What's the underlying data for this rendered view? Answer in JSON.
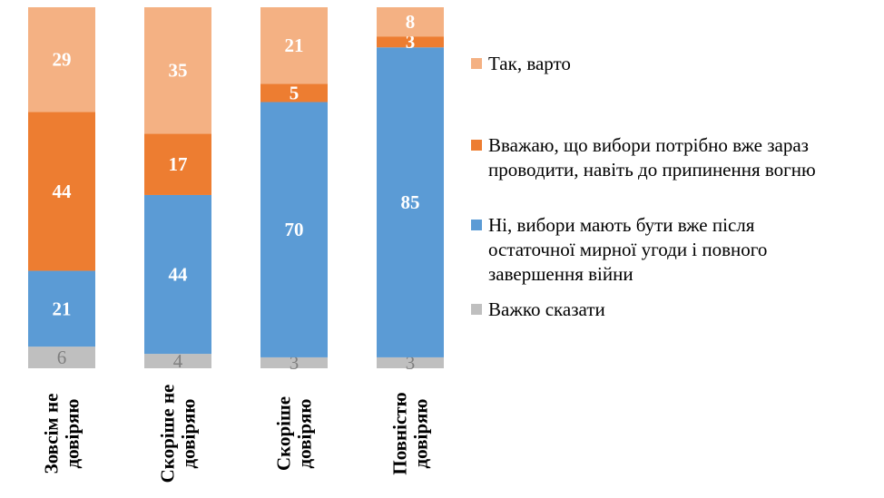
{
  "chart_data": {
    "type": "bar",
    "stacked": true,
    "orientation": "vertical",
    "categories": [
      [
        "Зовсім не",
        "довіряю"
      ],
      [
        "Скоріше не",
        "довіряю"
      ],
      [
        "Скоріше",
        "довіряю"
      ],
      [
        "Повністю",
        "довіряю"
      ]
    ],
    "series": [
      {
        "name": "Важко сказати",
        "color": "#bfbfbf",
        "values": [
          6,
          4,
          3,
          3
        ]
      },
      {
        "name": "Ні, вибори мають бути вже після остаточної мирної угоди і повного завершення війни",
        "color": "#5b9bd5",
        "values": [
          21,
          44,
          70,
          85
        ]
      },
      {
        "name": "Вважаю, що вибори потрібно вже зараз проводити, навіть до припинення вогню",
        "color": "#ed7d31",
        "values": [
          44,
          17,
          5,
          3
        ]
      },
      {
        "name": "Так, варто",
        "color": "#f4b183",
        "values": [
          29,
          35,
          21,
          8
        ]
      }
    ],
    "ylim": [
      0,
      100
    ],
    "axis_visible": false,
    "grid": false,
    "legend_position": "right"
  },
  "legend": [
    {
      "color": "#f4b183",
      "lines": [
        "Так, варто"
      ]
    },
    {
      "color": "#ed7d31",
      "lines": [
        "Вважаю, що вибори потрібно вже зараз",
        "проводити, навіть до припинення вогню"
      ]
    },
    {
      "color": "#5b9bd5",
      "lines": [
        "Ні, вибори мають бути вже після",
        "остаточної мирної угоди і повного",
        "завершення війни"
      ]
    },
    {
      "color": "#bfbfbf",
      "lines": [
        "Важко сказати"
      ]
    }
  ]
}
